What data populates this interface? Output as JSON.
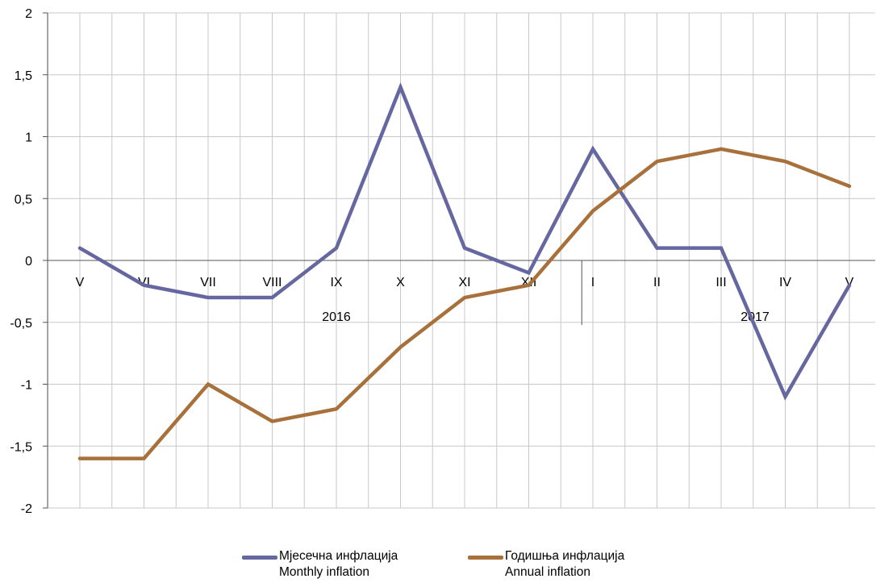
{
  "chart_data": {
    "type": "line",
    "categories": [
      "V",
      "VI",
      "VII",
      "VIII",
      "IX",
      "X",
      "XI",
      "XII",
      "I",
      "II",
      "III",
      "IV",
      "V"
    ],
    "year_groups": [
      {
        "label": "2016",
        "from": "V",
        "to": "XII"
      },
      {
        "label": "2017",
        "from": "I",
        "to": "V"
      }
    ],
    "ylim": [
      -2,
      2
    ],
    "yticks": [
      -2,
      -1.5,
      -1,
      -0.5,
      0,
      0.5,
      1,
      1.5,
      2
    ],
    "ytick_labels": [
      "-2",
      "-1,5",
      "-1",
      "-0,5",
      "0",
      "0,5",
      "1",
      "1,5",
      "2"
    ],
    "grid": true,
    "legend_position": "bottom",
    "series": [
      {
        "name": "Мјесечна инфлација",
        "name_en": "Monthly inflation",
        "color": "#6667a0",
        "values": [
          0.1,
          -0.2,
          -0.3,
          -0.3,
          0.1,
          1.4,
          0.1,
          -0.1,
          0.9,
          0.1,
          0.1,
          -1.1,
          -0.2
        ]
      },
      {
        "name": "Годишња инфлација",
        "name_en": "Annual inflation",
        "color": "#a8703a",
        "values": [
          -1.6,
          -1.6,
          -1.0,
          -1.3,
          -1.2,
          -0.7,
          -0.3,
          -0.2,
          0.4,
          0.8,
          0.9,
          0.8,
          0.6
        ]
      }
    ]
  }
}
